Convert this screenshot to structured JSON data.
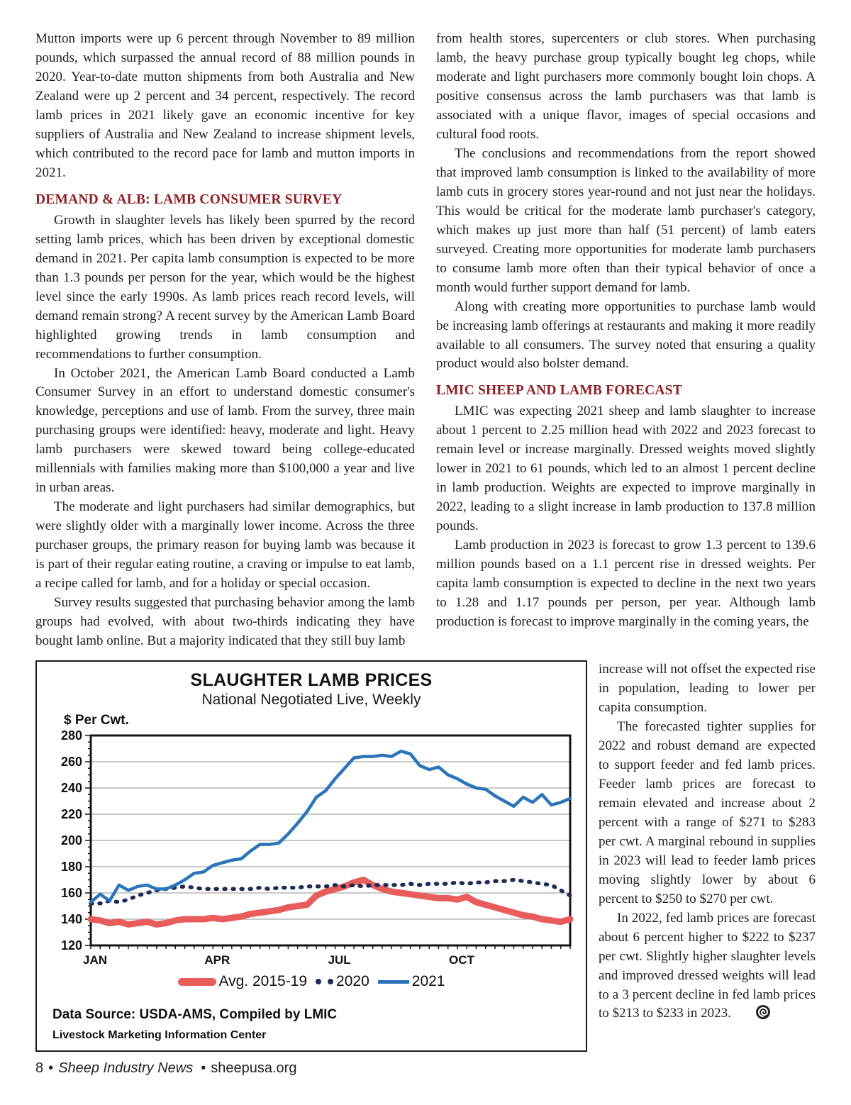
{
  "colors": {
    "heading_accent": "#8c2026"
  },
  "left_column": {
    "intro": "Mutton imports were up 6 percent through November to 89 million pounds, which surpassed the annual record of 88 million pounds in 2020. Year-to-date mutton shipments from both Australia and New Zealand were up 2 percent and 34 percent, respectively. The record lamb prices in 2021 likely gave an economic incentive for key suppliers of Australia and New Zealand to increase shipment levels, which contributed to the record pace for lamb and mutton imports in 2021.",
    "heading": "DEMAND & ALB: LAMB CONSUMER SURVEY",
    "paragraphs": [
      "Growth in slaughter levels has likely been spurred by the record setting lamb prices, which has been driven by exceptional domestic demand in 2021. Per capita lamb consumption is expected to be more than 1.3 pounds per person for the year, which would be the highest level since the early 1990s. As lamb prices reach record levels, will demand remain strong? A recent survey by the American Lamb Board highlighted growing trends in lamb consumption and recommendations to further consumption.",
      "In October 2021, the American Lamb Board conducted a Lamb Consumer Survey in an effort to understand domestic consumer's knowledge, perceptions and use of lamb. From the survey, three main purchasing groups were identified: heavy, moderate and light. Heavy lamb purchasers were skewed toward being college-educated millennials with families making more than $100,000 a year and live in urban areas.",
      "The moderate and light purchasers had similar demographics, but were slightly older with a marginally lower income. Across the three purchaser groups, the primary reason for buying lamb was because it is part of their regular eating routine, a craving or impulse to eat lamb, a recipe called for lamb, and for a holiday or special occasion.",
      "Survey results suggested that purchasing behavior among the lamb groups had evolved, with about two-thirds indicating they have bought lamb online. But a majority indicated that they still buy lamb"
    ]
  },
  "right_column": {
    "paragraphs_top": [
      "from health stores, supercenters or club stores. When purchasing lamb, the heavy purchase group typically bought leg chops, while moderate and light purchasers more commonly bought loin chops. A positive consensus across the lamb purchasers was that lamb is associated with a unique flavor, images of special occasions and cultural food roots.",
      "The conclusions and recommendations from the report showed that improved lamb consumption is linked to the availability of more lamb cuts in grocery stores year-round and not just near the holidays. This would be critical for the moderate lamb purchaser's category, which makes up just more than half (51 percent) of lamb eaters surveyed. Creating more opportunities for moderate lamb purchasers to consume lamb more often than their typical behavior of once a month would further support demand for lamb.",
      "Along with creating more opportunities to purchase lamb would be increasing lamb offerings at restaurants and making it more readily available to all consumers. The survey noted that ensuring a quality product would also bolster demand."
    ],
    "heading": "LMIC SHEEP AND LAMB FORECAST",
    "paragraphs_bottom": [
      "LMIC was expecting 2021 sheep and lamb slaughter to increase about 1 percent to 2.25 million head with 2022 and 2023 forecast to remain level or increase marginally. Dressed weights moved slightly lower in 2021 to 61 pounds, which led to an almost 1 percent decline in lamb production. Weights are expected to improve marginally in 2022, leading to a slight increase in lamb production to 137.8 million pounds.",
      "Lamb production in 2023 is forecast to grow 1.3 percent to 139.6 million pounds based on a 1.1 percent rise in dressed weights. Per capita lamb consumption is expected to decline in the next two years to 1.28 and 1.17 pounds per person, per year. Although lamb production is forecast to improve marginally in the coming years, the"
    ]
  },
  "side_column": {
    "paragraphs": [
      "increase will not offset the expected rise in population, leading to lower per capita consumption.",
      "The forecasted tighter supplies for 2022 and robust demand are expected to support feeder and fed lamb prices. Feeder lamb prices are forecast to remain elevated and increase about 2 percent with a range of $271 to $283 per cwt. A marginal rebound in supplies in 2023 will lead to feeder lamb prices moving slightly lower by about 6 percent to $250 to $270 per cwt.",
      "In 2022, fed lamb prices are forecast about 6 percent higher to $222 to $237 per cwt. Slightly higher slaughter levels and improved dressed weights will lead to a 3 percent decline in fed lamb prices to $213 to $233 in 2023."
    ]
  },
  "chart_data": {
    "type": "line",
    "title": "SLAUGHTER LAMB PRICES",
    "subtitle": "National Negotiated Live, Weekly",
    "ylabel": "$ Per Cwt.",
    "source_line": "Data Source: USDA-AMS, Compiled by LMIC",
    "credit_line": "Livestock Marketing Information Center",
    "ylim": [
      120,
      280
    ],
    "ytick_step": 20,
    "y_minor_step": 5,
    "grid": true,
    "legend_position": "bottom",
    "x_unit": "week",
    "xticks": [
      {
        "label": "JAN",
        "week": 0
      },
      {
        "label": "APR",
        "week": 13
      },
      {
        "label": "JUL",
        "week": 26
      },
      {
        "label": "OCT",
        "week": 39
      }
    ],
    "series": [
      {
        "name": "Avg. 2015-19",
        "color": "#e85c5c",
        "width": 9,
        "dash": null,
        "legend_swatch": "thick",
        "values": [
          140,
          139,
          137,
          138,
          136,
          137,
          138,
          136,
          137,
          139,
          140,
          140,
          140,
          141,
          140,
          141,
          142,
          144,
          145,
          146,
          147,
          149,
          150,
          151,
          158,
          161,
          163,
          165,
          168,
          170,
          166,
          163,
          161,
          160,
          159,
          158,
          157,
          156,
          156,
          155,
          157,
          153,
          151,
          149,
          147,
          145,
          143,
          142,
          140,
          139,
          138,
          140
        ]
      },
      {
        "name": "2020",
        "color": "#1f2a55",
        "width": 5.5,
        "dash": "2 10",
        "legend_swatch": "dots",
        "values": [
          152,
          152,
          154,
          153,
          155,
          158,
          160,
          162,
          163,
          164,
          165,
          164,
          163,
          163,
          163,
          163,
          163,
          163,
          164,
          163,
          164,
          164,
          164,
          165,
          165,
          165,
          166,
          165,
          166,
          165,
          166,
          166,
          166,
          166,
          167,
          166,
          167,
          167,
          167,
          168,
          167,
          168,
          168,
          169,
          169,
          170,
          169,
          168,
          167,
          166,
          162,
          158
        ]
      },
      {
        "name": "2021",
        "color": "#2b74b8",
        "width": 4.5,
        "dash": null,
        "legend_swatch": "line",
        "values": [
          153,
          159,
          154,
          166,
          162,
          165,
          166,
          163,
          163,
          166,
          170,
          175,
          176,
          181,
          183,
          185,
          186,
          192,
          197,
          197,
          198,
          205,
          213,
          222,
          233,
          238,
          247,
          255,
          263,
          264,
          264,
          265,
          264,
          268,
          266,
          257,
          254,
          256,
          250,
          247,
          243,
          240,
          239,
          234,
          230,
          226,
          233,
          229,
          235,
          227,
          229,
          232
        ]
      }
    ]
  },
  "footer": {
    "page_number": "8",
    "separator": "•",
    "magazine_title": "Sheep Industry News",
    "website": "sheepusa.org"
  }
}
